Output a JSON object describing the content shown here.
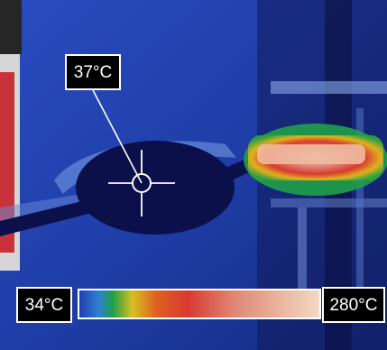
{
  "thermal_view": {
    "spot_temperature": "37°C",
    "scale_min": "34°C",
    "scale_max": "280°C",
    "palette": [
      "#0b0f4a",
      "#1f3fb0",
      "#2f7fd0",
      "#1fa04a",
      "#d8c020",
      "#e06020",
      "#d83a30",
      "#e08878",
      "#eab8a0",
      "#f2d8c4"
    ],
    "crosshair": "crosshair-icon"
  }
}
